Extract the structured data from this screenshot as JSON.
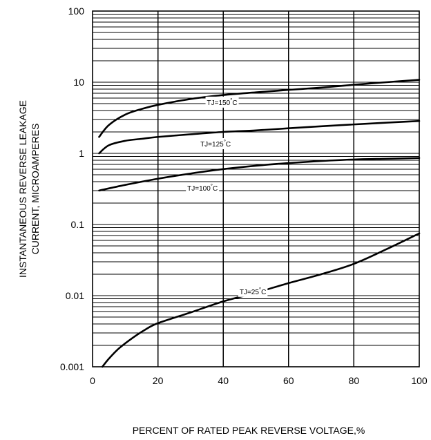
{
  "chart_data": {
    "type": "line",
    "title": "",
    "xlabel": "PERCENT OF RATED PEAK REVERSE VOLTAGE,%",
    "ylabel": [
      "INSTANTANEOUS REVERSE LEAKAGE",
      "CURRENT, MICROAMPERES"
    ],
    "y_scale": "log",
    "xlim": [
      0,
      100
    ],
    "ylim": [
      0.001,
      100
    ],
    "x_ticks": [
      "0",
      "20",
      "40",
      "60",
      "80",
      "100"
    ],
    "y_ticks": [
      "0.001",
      "0.01",
      "0.1",
      "1",
      "10",
      "100"
    ],
    "grid": true,
    "series": [
      {
        "label_parts": [
          "TJ=150",
          "°",
          "C"
        ],
        "label_at": [
          35,
          4.8
        ],
        "x": [
          2,
          5,
          10,
          15,
          20,
          30,
          40,
          50,
          60,
          70,
          80,
          90,
          100
        ],
        "y": [
          1.7,
          2.5,
          3.5,
          4.2,
          4.8,
          5.8,
          6.6,
          7.2,
          7.8,
          8.4,
          9.2,
          10.0,
          10.8
        ]
      },
      {
        "label_parts": [
          "TJ=125",
          "°",
          "C"
        ],
        "label_at": [
          33,
          1.25
        ],
        "x": [
          2,
          5,
          10,
          15,
          20,
          30,
          40,
          50,
          60,
          70,
          80,
          90,
          100
        ],
        "y": [
          1.0,
          1.3,
          1.5,
          1.6,
          1.7,
          1.85,
          2.0,
          2.1,
          2.25,
          2.4,
          2.55,
          2.7,
          2.85
        ]
      },
      {
        "label_parts": [
          "TJ=100",
          "°",
          "C"
        ],
        "label_at": [
          29,
          0.3
        ],
        "x": [
          2,
          10,
          20,
          30,
          40,
          50,
          60,
          70,
          80,
          90,
          100
        ],
        "y": [
          0.3,
          0.36,
          0.44,
          0.52,
          0.6,
          0.67,
          0.73,
          0.78,
          0.82,
          0.84,
          0.86
        ]
      },
      {
        "label_parts": [
          "TJ=25",
          "°",
          "C"
        ],
        "label_at": [
          45,
          0.0105
        ],
        "x": [
          3,
          5,
          8,
          12,
          16,
          20,
          30,
          40,
          50,
          60,
          70,
          80,
          90,
          100
        ],
        "y": [
          0.001,
          0.0013,
          0.0018,
          0.0025,
          0.0033,
          0.0041,
          0.0058,
          0.0083,
          0.011,
          0.015,
          0.02,
          0.028,
          0.045,
          0.075
        ]
      }
    ]
  }
}
